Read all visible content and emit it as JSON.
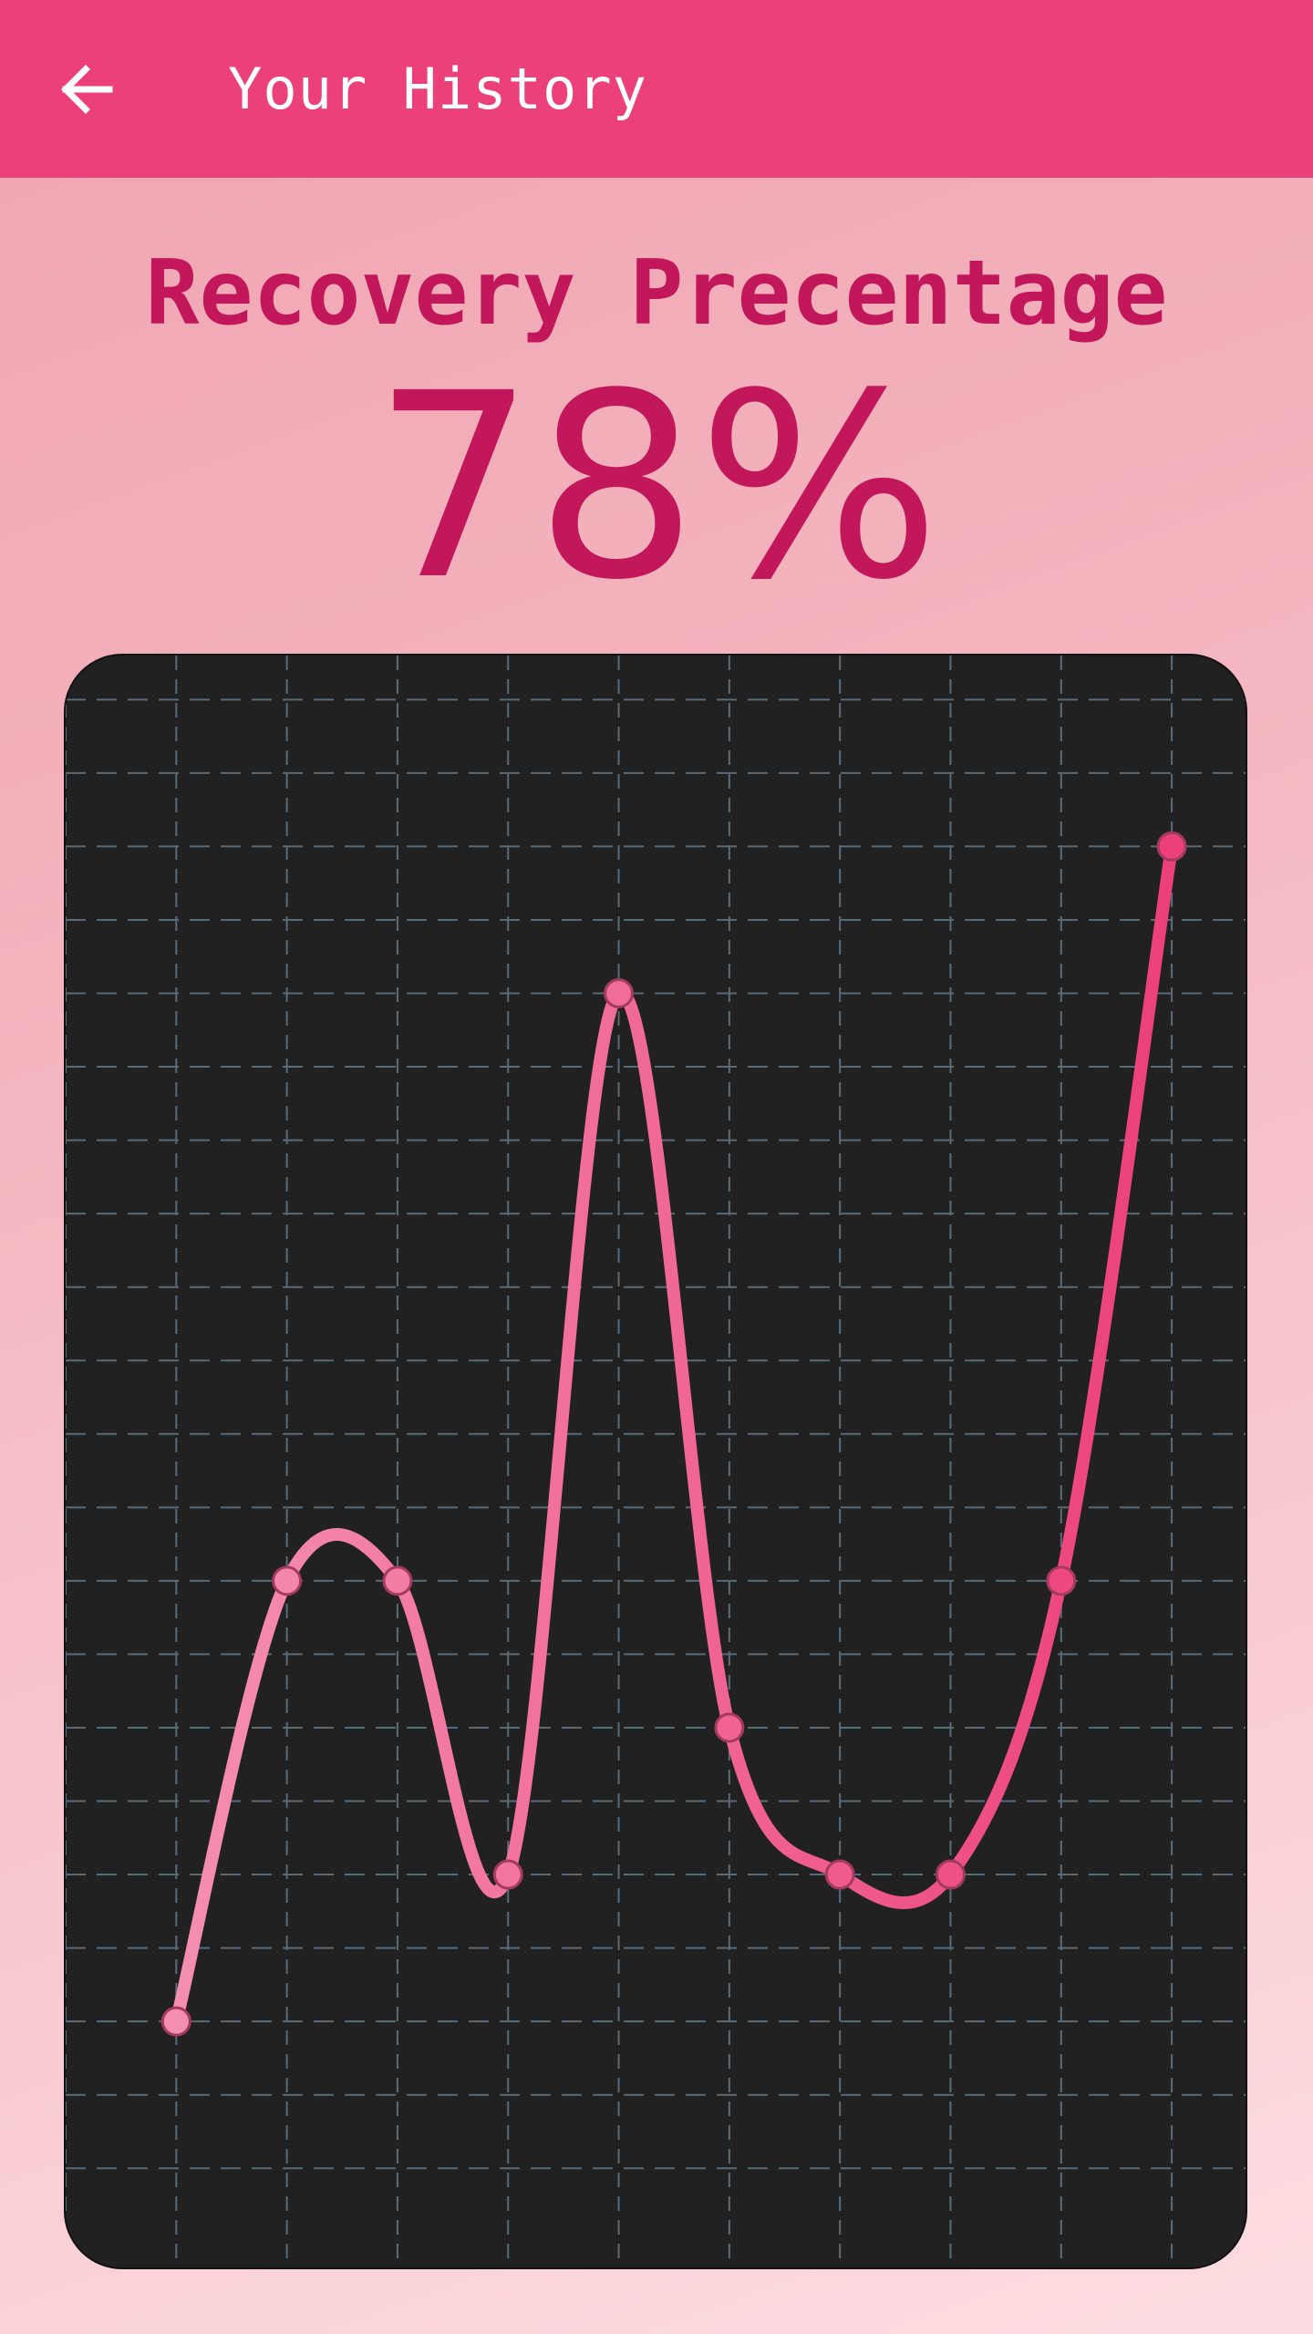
{
  "app_bar": {
    "title": "Your History",
    "back_icon": "arrow-left-icon",
    "background": "#ec407a"
  },
  "summary": {
    "heading": "Recovery Precentage",
    "value": "78%",
    "text_color": "#c2185b"
  },
  "chart_data": {
    "type": "line",
    "x": [
      1,
      2,
      3,
      4,
      5,
      6,
      7,
      8,
      9,
      10
    ],
    "values": [
      2,
      5,
      5,
      3,
      9,
      4,
      3,
      3,
      5,
      10
    ],
    "xlim": [
      0,
      10.7
    ],
    "ylim": [
      0.3,
      11.3
    ],
    "grid": true,
    "smooth": true,
    "background": "#212121",
    "grid_color": "#5a6b78",
    "line_color_start": "#f48fb1",
    "line_color_end": "#ec407a",
    "marker_stroke": "#a33a60"
  }
}
